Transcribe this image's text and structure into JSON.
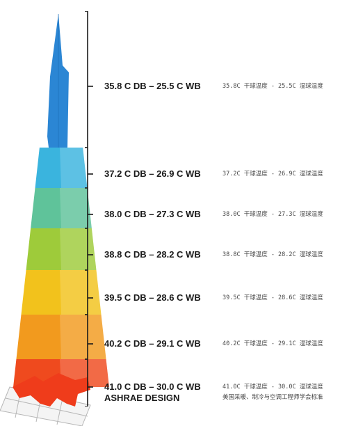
{
  "zones": [
    {
      "en": "35.8 C DB – 25.5 C WB",
      "cn": "35.8C 干球温度 - 25.5C 湿球温度",
      "color": "#2f8fd8"
    },
    {
      "en": "37.2 C DB – 26.9 C WB",
      "cn": "37.2C 干球温度 - 26.9C 湿球温度",
      "color": "#3ab4de"
    },
    {
      "en": "38.0 C DB – 27.3 C WB",
      "cn": "38.0C 干球温度 - 27.3C 湿球温度",
      "color": "#5fc39a"
    },
    {
      "en": "38.8 C DB – 28.2 C WB",
      "cn": "38.8C 干球温度 - 28.2C 湿球温度",
      "color": "#9ecb3a"
    },
    {
      "en": "39.5 C DB – 28.6 C WB",
      "cn": "39.5C 干球温度 - 28.6C 湿球温度",
      "color": "#f2c21c"
    },
    {
      "en": "40.2 C DB – 29.1 C WB",
      "cn": "40.2C 干球温度 - 29.1C 湿球温度",
      "color": "#f29a1e"
    },
    {
      "en": "41.0 C DB – 30.0 C WB",
      "cn": "41.0C 干球温度 - 30.0C 湿球温度",
      "color": "#ef4a1e"
    }
  ],
  "footer": {
    "en": "ASHRAE DESIGN",
    "cn": "美国采暖、制冷与空调工程师学会标准"
  }
}
